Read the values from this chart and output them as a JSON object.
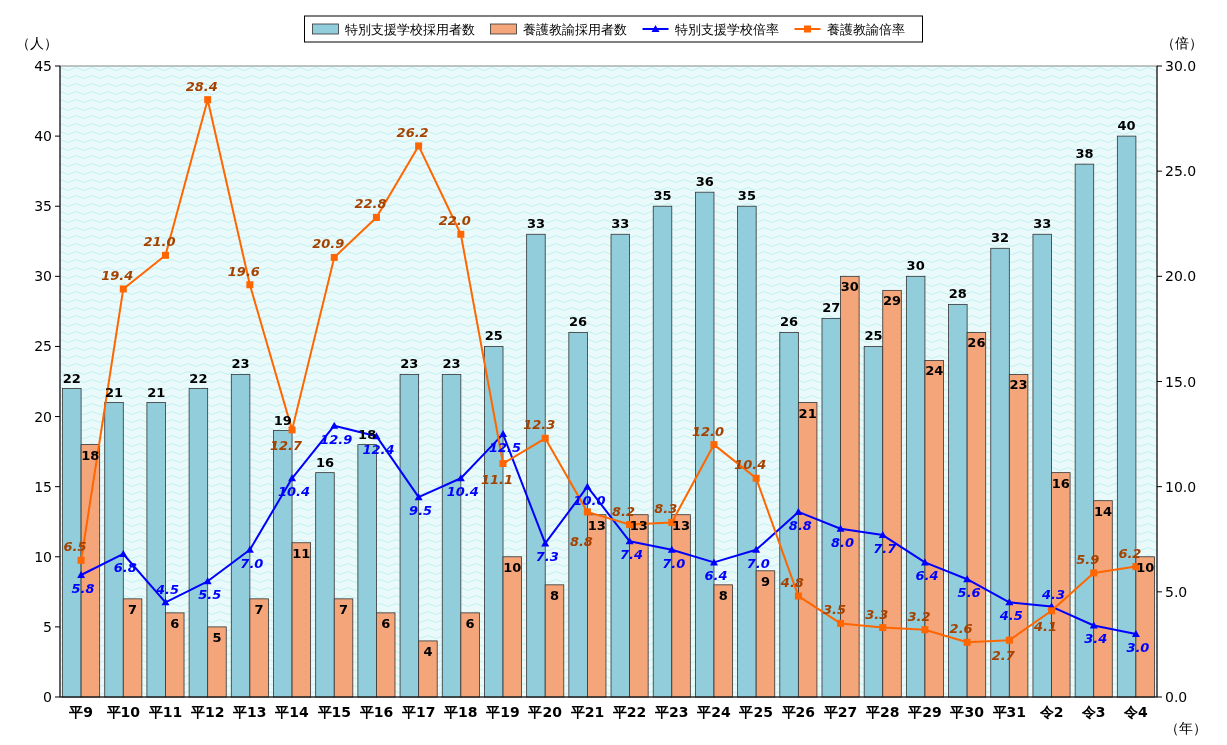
{
  "chart_data": {
    "type": "bar",
    "categories": [
      "平9",
      "平10",
      "平11",
      "平12",
      "平13",
      "平14",
      "平15",
      "平16",
      "平17",
      "平18",
      "平19",
      "平20",
      "平21",
      "平22",
      "平23",
      "平24",
      "平25",
      "平26",
      "平27",
      "平28",
      "平29",
      "平30",
      "平31",
      "令2",
      "令3",
      "令4"
    ],
    "series": [
      {
        "name": "特別支援学校採用者数",
        "color": "#92cddc",
        "values": [
          22,
          21,
          21,
          22,
          23,
          19,
          16,
          18,
          23,
          23,
          25,
          33,
          26,
          33,
          35,
          36,
          35,
          26,
          27,
          25,
          30,
          28,
          32,
          33,
          38,
          40
        ]
      },
      {
        "name": "養護教諭採用者数",
        "color": "#f4a57a",
        "values": [
          18,
          7,
          6,
          5,
          7,
          11,
          7,
          6,
          4,
          6,
          10,
          8,
          13,
          13,
          13,
          8,
          9,
          21,
          30,
          29,
          24,
          26,
          23,
          16,
          14,
          10
        ]
      },
      {
        "name": "特別支援学校倍率",
        "type": "line",
        "axis": "y2",
        "color": "#0000ff",
        "marker": "triangle",
        "values": [
          5.8,
          6.8,
          4.5,
          5.5,
          7.0,
          10.4,
          12.9,
          12.4,
          9.5,
          10.4,
          12.5,
          7.3,
          10.0,
          7.4,
          7.0,
          6.4,
          7.0,
          8.8,
          8.0,
          7.7,
          6.4,
          5.6,
          4.5,
          4.3,
          3.4,
          3.0
        ],
        "value_labels": [
          "5.8",
          "6.8",
          "4.5",
          "5.5",
          "7.0",
          "10.4",
          "12.9",
          "12.4",
          "9.5",
          "10.4",
          "12.5",
          "7.3",
          "10.0",
          "7.4",
          "7.0",
          "6.4",
          "7.0",
          "8.8",
          "8.0",
          "7.7",
          "6.4",
          "5.6",
          "4.5",
          "4.3",
          "3.4",
          "3.0"
        ]
      },
      {
        "name": "養護教諭倍率",
        "type": "line",
        "axis": "y2",
        "color": "#ff6600",
        "marker": "square",
        "values": [
          6.5,
          19.4,
          21.0,
          28.4,
          19.6,
          12.7,
          20.9,
          22.8,
          26.2,
          22.0,
          11.1,
          12.3,
          8.8,
          8.2,
          8.3,
          12.0,
          10.4,
          4.8,
          3.5,
          3.3,
          3.2,
          2.6,
          2.7,
          4.1,
          5.9,
          6.2
        ],
        "value_labels": [
          "6.5",
          "19.4",
          "21.0",
          "28.4",
          "19.6",
          "12.7",
          "20.9",
          "22.8",
          "26.2",
          "22.0",
          "11.1",
          "12.3",
          "8.8",
          "8.2",
          "8.3",
          "12.0",
          "10.4",
          "4.8",
          "3.5",
          "3.3",
          "3.2",
          "2.6",
          "2.7",
          "4.1",
          "5.9",
          "6.2"
        ]
      }
    ],
    "ylabel": "（人）",
    "y2label": "（倍）",
    "xlabel": "（年）",
    "ylim": [
      0,
      45
    ],
    "yticks": [
      0,
      5,
      10,
      15,
      20,
      25,
      30,
      35,
      40,
      45
    ],
    "y2lim": [
      0,
      30
    ],
    "y2ticks": [
      {
        "value": 0,
        "label": "0.0"
      },
      {
        "value": 5,
        "label": "5.0"
      },
      {
        "value": 10,
        "label": "10.0"
      },
      {
        "value": 15,
        "label": "15.0"
      },
      {
        "value": 20,
        "label": "20.0"
      },
      {
        "value": 25,
        "label": "25.0"
      },
      {
        "value": 30,
        "label": "30.0"
      }
    ],
    "data_labels": true,
    "legend": "top",
    "grid": false
  }
}
